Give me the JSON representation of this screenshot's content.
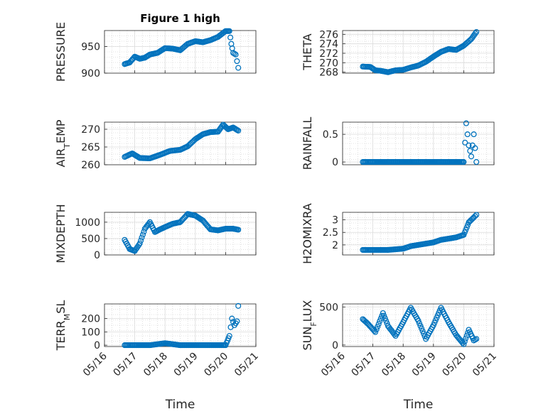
{
  "figure": {
    "title": "Figure 1 high",
    "marker_color": "#0072bd",
    "axes_color": "#262626",
    "grid_color": "#c8c8c8",
    "xlabel": "Time"
  },
  "chart_data": [
    {
      "type": "scatter",
      "ylabel": "PRESSURE",
      "xlim": [
        "05/16",
        "05/21"
      ],
      "ylim": [
        900,
        980
      ],
      "yticks": [
        "900",
        "950"
      ],
      "ytick_values": [
        900,
        950
      ],
      "grid": true,
      "x": [
        "05/16 16:00",
        "05/16 20:00",
        "05/17 00:00",
        "05/17 04:00",
        "05/17 08:00",
        "05/17 12:00",
        "05/17 18:00",
        "05/18 00:00",
        "05/18 06:00",
        "05/18 12:00",
        "05/18 18:00",
        "05/19 00:00",
        "05/19 06:00",
        "05/19 12:00",
        "05/19 18:00",
        "05/20 00:00",
        "05/20 03:00",
        "05/20 04:30",
        "05/20 06:00",
        "05/20 08:00",
        "05/20 10:00"
      ],
      "y": [
        917,
        920,
        931,
        927,
        929,
        935,
        938,
        947,
        946,
        943,
        955,
        960,
        958,
        962,
        968,
        979,
        979,
        955,
        938,
        935,
        910
      ]
    },
    {
      "type": "scatter",
      "ylabel": "THETA",
      "xlim": [
        "05/16",
        "05/21"
      ],
      "ylim": [
        267.8,
        276.8
      ],
      "yticks": [
        "268",
        "270",
        "272",
        "274",
        "276"
      ],
      "ytick_values": [
        268,
        270,
        272,
        274,
        276
      ],
      "grid": true,
      "x": [
        "05/16 16:00",
        "05/16 22:00",
        "05/17 02:00",
        "05/17 06:00",
        "05/17 12:00",
        "05/17 18:00",
        "05/18 00:00",
        "05/18 06:00",
        "05/18 12:00",
        "05/18 18:00",
        "05/19 00:00",
        "05/19 06:00",
        "05/19 12:00",
        "05/19 18:00",
        "05/20 00:00",
        "05/20 06:00",
        "05/20 10:00"
      ],
      "y": [
        269.2,
        269.1,
        268.4,
        268.3,
        268.0,
        268.4,
        268.5,
        269.0,
        269.4,
        270.2,
        271.3,
        272.3,
        272.9,
        272.7,
        273.6,
        275.0,
        276.5
      ]
    },
    {
      "type": "scatter",
      "ylabel": "AIR_TEMP",
      "xlim": [
        "05/16",
        "05/21"
      ],
      "ylim": [
        260,
        272
      ],
      "yticks": [
        "260",
        "265",
        "270"
      ],
      "ytick_values": [
        260,
        265,
        270
      ],
      "grid": true,
      "x": [
        "05/16 16:00",
        "05/16 22:00",
        "05/17 04:00",
        "05/17 12:00",
        "05/17 20:00",
        "05/18 04:00",
        "05/18 12:00",
        "05/18 18:00",
        "05/19 00:00",
        "05/19 06:00",
        "05/19 12:00",
        "05/19 18:00",
        "05/19 22:00",
        "05/20 02:00",
        "05/20 06:00",
        "05/20 10:00"
      ],
      "y": [
        262.2,
        263.2,
        261.9,
        261.8,
        262.8,
        263.9,
        264.2,
        265.2,
        267.2,
        268.6,
        269.2,
        269.3,
        271.3,
        270.0,
        270.5,
        269.6
      ]
    },
    {
      "type": "scatter",
      "ylabel": "RAINFALL",
      "xlim": [
        "05/16",
        "05/21"
      ],
      "ylim": [
        -0.05,
        0.72
      ],
      "yticks": [
        "0",
        "0.5"
      ],
      "ytick_values": [
        0,
        0.5
      ],
      "grid": true,
      "x": [
        "05/16 16:00",
        "05/17 00:00",
        "05/17 12:00",
        "05/18 00:00",
        "05/18 12:00",
        "05/19 00:00",
        "05/19 12:00",
        "05/20 00:00",
        "05/20 02:00",
        "05/20 04:00",
        "05/20 06:00",
        "05/20 08:00",
        "05/20 10:00"
      ],
      "y": [
        0,
        0,
        0,
        0,
        0,
        0,
        0,
        0,
        0.7,
        0.3,
        0.1,
        0.5,
        0
      ]
    },
    {
      "type": "scatter",
      "ylabel": "MIXDEPTH",
      "xlim": [
        "05/16",
        "05/21"
      ],
      "ylim": [
        0,
        1300
      ],
      "yticks": [
        "0",
        "500",
        "1000"
      ],
      "ytick_values": [
        0,
        500,
        1000
      ],
      "grid": true,
      "x": [
        "05/16 16:00",
        "05/16 20:00",
        "05/17 00:00",
        "05/17 04:00",
        "05/17 08:00",
        "05/17 12:00",
        "05/17 16:00",
        "05/17 20:00",
        "05/18 00:00",
        "05/18 06:00",
        "05/18 12:00",
        "05/18 18:00",
        "05/19 00:00",
        "05/19 06:00",
        "05/19 12:00",
        "05/19 18:00",
        "05/20 00:00",
        "05/20 06:00",
        "05/20 10:00"
      ],
      "y": [
        460,
        180,
        120,
        350,
        800,
        1000,
        700,
        780,
        850,
        950,
        1000,
        1250,
        1200,
        1050,
        780,
        750,
        800,
        800,
        770
      ]
    },
    {
      "type": "scatter",
      "ylabel": "H2OMIXRA",
      "xlim": [
        "05/16",
        "05/21"
      ],
      "ylim": [
        1.6,
        3.3
      ],
      "yticks": [
        "2",
        "2.5",
        "3"
      ],
      "ytick_values": [
        2,
        2.5,
        3
      ],
      "grid": true,
      "x": [
        "05/16 16:00",
        "05/17 00:00",
        "05/17 12:00",
        "05/18 00:00",
        "05/18 06:00",
        "05/18 12:00",
        "05/18 18:00",
        "05/19 00:00",
        "05/19 06:00",
        "05/19 12:00",
        "05/19 18:00",
        "05/20 00:00",
        "05/20 04:00",
        "05/20 08:00",
        "05/20 10:00"
      ],
      "y": [
        1.8,
        1.8,
        1.8,
        1.85,
        1.95,
        2.0,
        2.05,
        2.1,
        2.2,
        2.25,
        2.3,
        2.4,
        2.9,
        3.1,
        3.2
      ]
    },
    {
      "type": "scatter",
      "ylabel": "TERR_MSL",
      "xlim": [
        "05/16",
        "05/21"
      ],
      "ylim": [
        -10,
        310
      ],
      "yticks": [
        "0",
        "100",
        "200"
      ],
      "ytick_values": [
        0,
        100,
        200
      ],
      "grid": true,
      "x": [
        "05/16 16:00",
        "05/17 00:00",
        "05/17 12:00",
        "05/18 00:00",
        "05/18 12:00",
        "05/19 00:00",
        "05/19 12:00",
        "05/20 00:00",
        "05/20 03:00",
        "05/20 05:00",
        "05/20 07:00",
        "05/20 09:00",
        "05/20 10:00"
      ],
      "y": [
        0,
        0,
        0,
        15,
        0,
        0,
        0,
        0,
        70,
        200,
        150,
        180,
        295
      ]
    },
    {
      "type": "scatter",
      "ylabel": "SUN_FLUX",
      "xlim": [
        "05/16",
        "05/21"
      ],
      "ylim": [
        -20,
        540
      ],
      "yticks": [
        "0",
        "500"
      ],
      "ytick_values": [
        0,
        500
      ],
      "grid": true,
      "x": [
        "05/16 16:00",
        "05/16 20:00",
        "05/17 02:00",
        "05/17 08:00",
        "05/17 12:00",
        "05/17 18:00",
        "05/18 00:00",
        "05/18 06:00",
        "05/18 12:00",
        "05/18 18:00",
        "05/19 00:00",
        "05/19 06:00",
        "05/19 12:00",
        "05/19 18:00",
        "05/20 00:00",
        "05/20 04:00",
        "05/20 08:00",
        "05/20 10:00"
      ],
      "y": [
        340,
        280,
        170,
        420,
        250,
        120,
        300,
        490,
        320,
        80,
        260,
        490,
        300,
        130,
        10,
        200,
        60,
        80
      ]
    }
  ]
}
